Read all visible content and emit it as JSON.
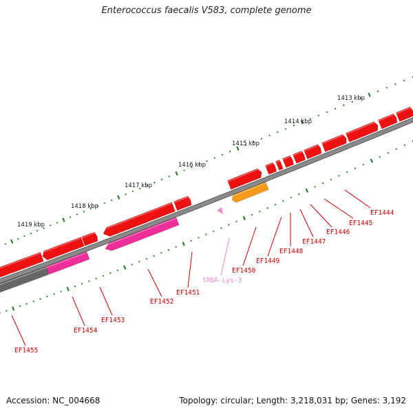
{
  "title": "Enterococcus faecalis V583, complete genome",
  "footer": {
    "accession": "Accession: NC_004668",
    "topology": "Topology: circular; Length: 3,218,031 bp; Genes: 3,192"
  },
  "colors": {
    "background": "#ffffff",
    "backbone": "#8a8a8a",
    "gene_forward": "#ee1111",
    "gene_reverse_magenta": "#ee2f9a",
    "gene_reverse_gray": "#666666",
    "orange_gene": "#f59a1a",
    "trna": "#f08cc8",
    "ticks": "#2e7d2e",
    "label_red": "#cc0000",
    "label_pink": "#e58ac6"
  },
  "scale_labels": [
    "1413 kbp",
    "1414 kbp",
    "1415 kbp",
    "1416 kbp",
    "1417 kbp",
    "1418 kbp",
    "1419 kbp"
  ],
  "feature_labels": [
    {
      "id": "EF1444",
      "kind": "gene"
    },
    {
      "id": "EF1445",
      "kind": "gene"
    },
    {
      "id": "EF1446",
      "kind": "gene"
    },
    {
      "id": "EF1447",
      "kind": "gene"
    },
    {
      "id": "EF1448",
      "kind": "gene"
    },
    {
      "id": "EF1449",
      "kind": "gene"
    },
    {
      "id": "EF1450",
      "kind": "gene"
    },
    {
      "id": "tRNA-Lys-3",
      "kind": "trna"
    },
    {
      "id": "EF1451",
      "kind": "gene"
    },
    {
      "id": "EF1452",
      "kind": "gene"
    },
    {
      "id": "EF1453",
      "kind": "gene"
    },
    {
      "id": "EF1454",
      "kind": "gene"
    },
    {
      "id": "EF1455",
      "kind": "gene"
    }
  ]
}
